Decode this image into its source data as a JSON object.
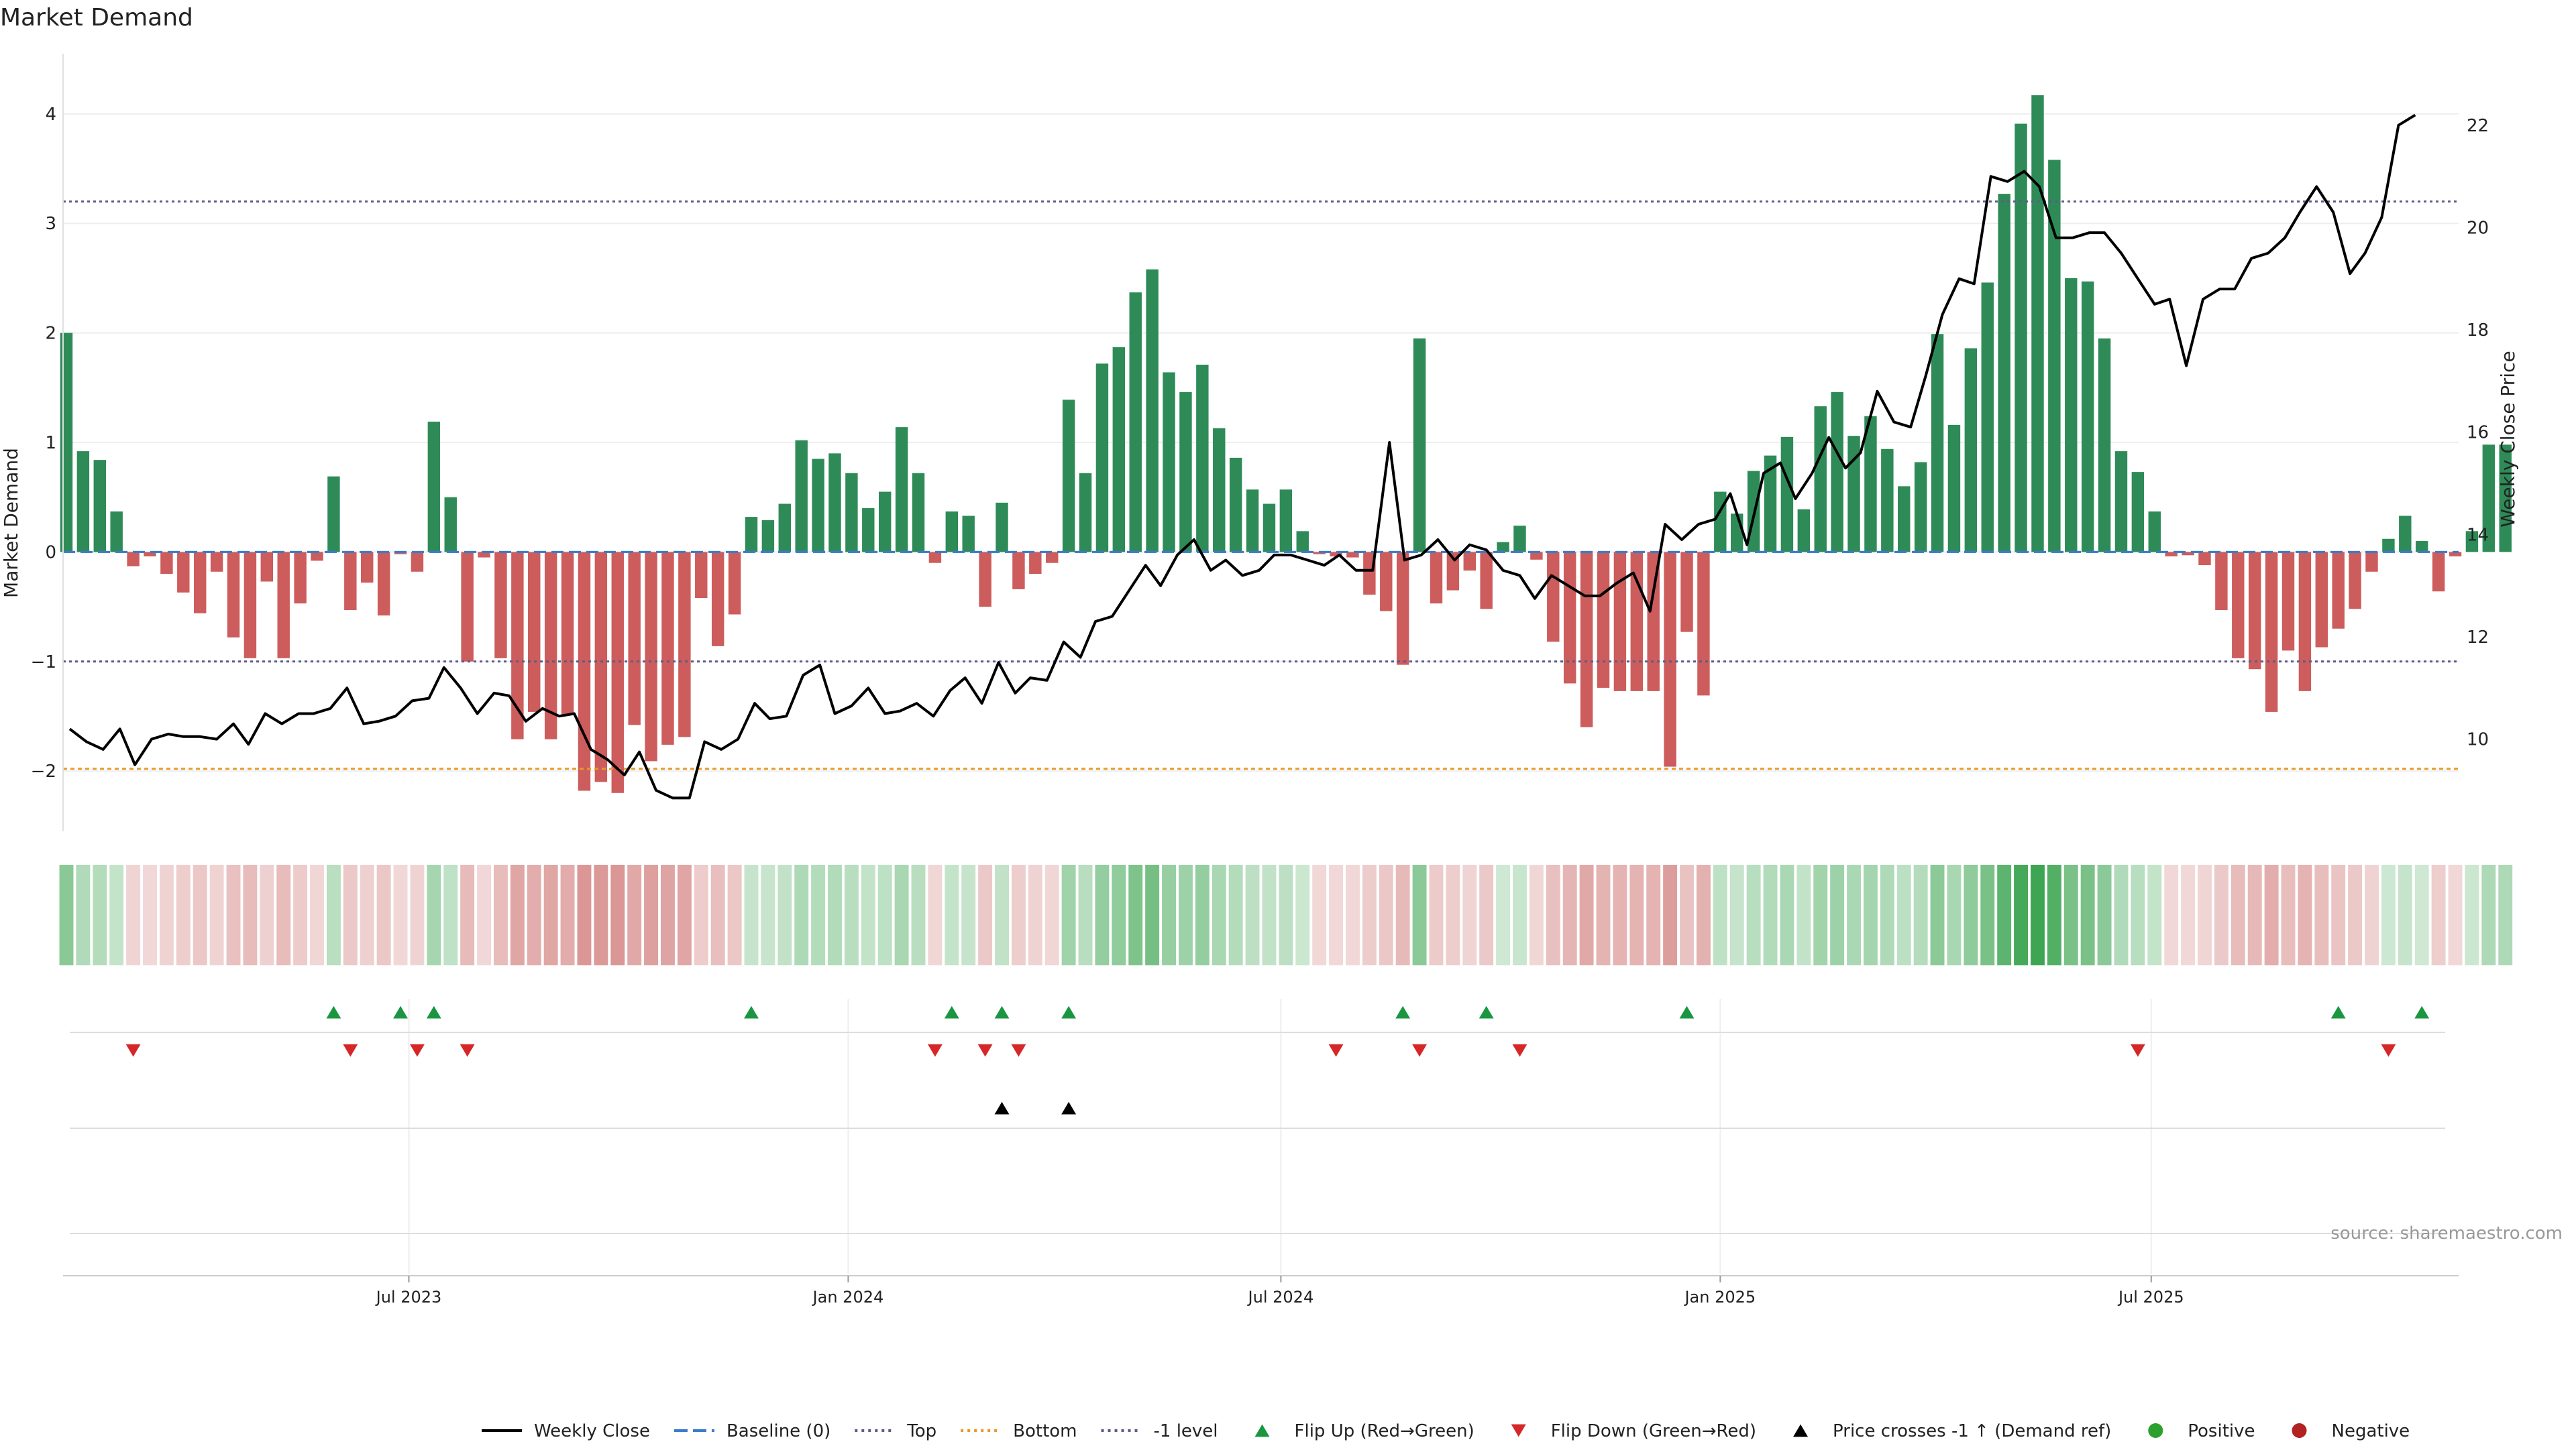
{
  "title": "Market Demand",
  "source_note": "source: sharemaestro.com",
  "colors": {
    "positive": "#2e8b57",
    "negative": "#cd5c5c",
    "price_line": "#000000",
    "top_line": "#5c5c8a",
    "bottom_line": "#e69a28",
    "minus1_line": "#5c5c8a",
    "baseline": "#3a7cc9",
    "flip_up": "#1a9641",
    "flip_down": "#d62728",
    "cross": "#000000",
    "legend_pos": "#2ca02c",
    "legend_neg": "#b22222"
  },
  "legend": [
    {
      "label": "Weekly Close",
      "kind": "solid-line",
      "color": "#000000"
    },
    {
      "label": "Baseline (0)",
      "kind": "dash-line",
      "color": "#3a7cc9"
    },
    {
      "label": "Top",
      "kind": "dot-line",
      "color": "#5c5c8a"
    },
    {
      "label": "Bottom",
      "kind": "dot-line",
      "color": "#e69a28"
    },
    {
      "label": "-1 level",
      "kind": "dot-line",
      "color": "#5c5c8a"
    },
    {
      "label": "Flip Up (Red→Green)",
      "kind": "tri-up",
      "color": "#1a9641"
    },
    {
      "label": "Flip Down (Green→Red)",
      "kind": "tri-down",
      "color": "#d62728"
    },
    {
      "label": "Price crosses -1 ↑ (Demand ref)",
      "kind": "tri-up",
      "color": "#000000"
    },
    {
      "label": "Positive",
      "kind": "dot",
      "color": "#2ca02c"
    },
    {
      "label": "Negative",
      "kind": "dot",
      "color": "#b22222"
    }
  ],
  "chart_data": {
    "type": "bar+line",
    "title": "Market Demand",
    "xlabel": "",
    "ylabel": "Market Demand",
    "y2label": "Weekly Close Price",
    "ylim": [
      -2.55,
      4.55
    ],
    "y2lim": [
      8.2,
      23.4
    ],
    "yticks": [
      -2,
      -1,
      0,
      1,
      2,
      3,
      4
    ],
    "ytick_labels": [
      "−2",
      "−1",
      "0",
      "1",
      "2",
      "3",
      "4"
    ],
    "y2ticks": [
      10,
      12,
      14,
      16,
      18,
      20,
      22
    ],
    "reference_levels": {
      "top": 3.2,
      "bottom": -1.98,
      "minus_one": -1.0,
      "baseline": 0
    },
    "xlim_week": [
      -0.2,
      143.2
    ],
    "xticks": [
      {
        "label": "Jul 2023",
        "week": 20.5
      },
      {
        "label": "Jan 2024",
        "week": 46.8
      },
      {
        "label": "Jul 2024",
        "week": 72.7
      },
      {
        "label": "Jan 2025",
        "week": 99.0
      },
      {
        "label": "Jul 2025",
        "week": 124.8
      }
    ],
    "demand": [
      2.0,
      0.92,
      0.84,
      0.37,
      -0.13,
      -0.04,
      -0.2,
      -0.37,
      -0.56,
      -0.18,
      -0.78,
      -0.97,
      -0.27,
      -0.97,
      -0.47,
      -0.08,
      0.69,
      -0.53,
      -0.28,
      -0.58,
      -0.02,
      -0.18,
      1.19,
      0.5,
      -1.0,
      -0.05,
      -0.97,
      -1.71,
      -1.46,
      -1.71,
      -1.49,
      -2.18,
      -2.1,
      -2.2,
      -1.58,
      -1.91,
      -1.76,
      -1.69,
      -0.42,
      -0.86,
      -0.57,
      0.32,
      0.29,
      0.44,
      1.02,
      0.85,
      0.9,
      0.72,
      0.4,
      0.55,
      1.14,
      0.72,
      -0.1,
      0.37,
      0.33,
      -0.5,
      0.45,
      -0.34,
      -0.2,
      -0.1,
      1.39,
      0.72,
      1.72,
      1.87,
      2.37,
      2.58,
      1.64,
      1.46,
      1.71,
      1.13,
      0.86,
      0.57,
      0.44,
      0.57,
      0.19,
      -0.02,
      -0.04,
      -0.05,
      -0.39,
      -0.54,
      -1.03,
      1.95,
      -0.47,
      -0.35,
      -0.17,
      -0.52,
      0.09,
      0.24,
      -0.07,
      -0.82,
      -1.2,
      -1.6,
      -1.24,
      -1.27,
      -1.27,
      -1.27,
      -1.96,
      -0.73,
      -1.31,
      0.55,
      0.35,
      0.74,
      0.88,
      1.05,
      0.39,
      1.33,
      1.46,
      1.06,
      1.24,
      0.94,
      0.6,
      0.82,
      1.99,
      1.16,
      1.86,
      2.46,
      3.27,
      3.91,
      4.17,
      3.58,
      2.5,
      2.47,
      1.95,
      0.92,
      0.73,
      0.37,
      -0.04,
      -0.03,
      -0.12,
      -0.53,
      -0.97,
      -1.07,
      -1.46,
      -0.9,
      -1.27,
      -0.87,
      -0.7,
      -0.52,
      -0.18,
      0.12,
      0.33,
      0.1,
      -0.36,
      -0.04,
      0.19,
      0.98,
      0.98
    ],
    "flip_up_weeks": [
      16,
      20,
      22,
      41,
      53,
      56,
      60,
      80,
      85,
      97,
      136,
      141
    ],
    "flip_down_weeks": [
      4,
      17,
      21,
      24,
      52,
      55,
      57,
      76,
      81,
      87,
      124,
      139
    ],
    "price_cross_weeks": [
      56,
      60
    ],
    "price": [
      {
        "w": 0.2,
        "v": 10.2
      },
      {
        "w": 1.2,
        "v": 9.95
      },
      {
        "w": 2.2,
        "v": 9.8
      },
      {
        "w": 3.2,
        "v": 10.2
      },
      {
        "w": 4.1,
        "v": 9.5
      },
      {
        "w": 5.1,
        "v": 10.0
      },
      {
        "w": 6.1,
        "v": 10.1
      },
      {
        "w": 7.0,
        "v": 10.05
      },
      {
        "w": 8.0,
        "v": 10.05
      },
      {
        "w": 9.0,
        "v": 10.0
      },
      {
        "w": 10.0,
        "v": 10.3
      },
      {
        "w": 10.9,
        "v": 9.9
      },
      {
        "w": 11.9,
        "v": 10.5
      },
      {
        "w": 12.9,
        "v": 10.3
      },
      {
        "w": 13.9,
        "v": 10.5
      },
      {
        "w": 14.8,
        "v": 10.5
      },
      {
        "w": 15.8,
        "v": 10.6
      },
      {
        "w": 16.8,
        "v": 11.0
      },
      {
        "w": 17.8,
        "v": 10.3
      },
      {
        "w": 18.7,
        "v": 10.35
      },
      {
        "w": 19.7,
        "v": 10.45
      },
      {
        "w": 20.7,
        "v": 10.75
      },
      {
        "w": 21.7,
        "v": 10.8
      },
      {
        "w": 22.6,
        "v": 11.4
      },
      {
        "w": 23.6,
        "v": 11.0
      },
      {
        "w": 24.6,
        "v": 10.5
      },
      {
        "w": 25.6,
        "v": 10.9
      },
      {
        "w": 26.5,
        "v": 10.85
      },
      {
        "w": 27.5,
        "v": 10.35
      },
      {
        "w": 28.5,
        "v": 10.6
      },
      {
        "w": 29.5,
        "v": 10.45
      },
      {
        "w": 30.4,
        "v": 10.5
      },
      {
        "w": 31.4,
        "v": 9.8
      },
      {
        "w": 32.4,
        "v": 9.6
      },
      {
        "w": 33.4,
        "v": 9.3
      },
      {
        "w": 34.3,
        "v": 9.75
      },
      {
        "w": 35.3,
        "v": 9.0
      },
      {
        "w": 36.3,
        "v": 8.85
      },
      {
        "w": 37.3,
        "v": 8.85
      },
      {
        "w": 38.2,
        "v": 9.95
      },
      {
        "w": 39.2,
        "v": 9.8
      },
      {
        "w": 40.2,
        "v": 10.0
      },
      {
        "w": 41.2,
        "v": 10.7
      },
      {
        "w": 42.1,
        "v": 10.4
      },
      {
        "w": 43.1,
        "v": 10.45
      },
      {
        "w": 44.1,
        "v": 11.25
      },
      {
        "w": 45.1,
        "v": 11.45
      },
      {
        "w": 46.0,
        "v": 10.5
      },
      {
        "w": 47.0,
        "v": 10.65
      },
      {
        "w": 48.0,
        "v": 11.0
      },
      {
        "w": 49.0,
        "v": 10.5
      },
      {
        "w": 49.9,
        "v": 10.55
      },
      {
        "w": 50.9,
        "v": 10.7
      },
      {
        "w": 51.9,
        "v": 10.45
      },
      {
        "w": 52.9,
        "v": 10.95
      },
      {
        "w": 53.8,
        "v": 11.2
      },
      {
        "w": 54.8,
        "v": 10.7
      },
      {
        "w": 55.8,
        "v": 11.5
      },
      {
        "w": 56.8,
        "v": 10.9
      },
      {
        "w": 57.7,
        "v": 11.2
      },
      {
        "w": 58.7,
        "v": 11.15
      },
      {
        "w": 59.7,
        "v": 11.9
      },
      {
        "w": 60.7,
        "v": 11.6
      },
      {
        "w": 61.6,
        "v": 12.3
      },
      {
        "w": 62.6,
        "v": 12.4
      },
      {
        "w": 63.6,
        "v": 12.9
      },
      {
        "w": 64.6,
        "v": 13.4
      },
      {
        "w": 65.5,
        "v": 13.0
      },
      {
        "w": 66.5,
        "v": 13.6
      },
      {
        "w": 67.5,
        "v": 13.9
      },
      {
        "w": 68.5,
        "v": 13.3
      },
      {
        "w": 69.4,
        "v": 13.5
      },
      {
        "w": 70.4,
        "v": 13.2
      },
      {
        "w": 71.4,
        "v": 13.3
      },
      {
        "w": 72.3,
        "v": 13.6
      },
      {
        "w": 73.3,
        "v": 13.6
      },
      {
        "w": 74.3,
        "v": 13.5
      },
      {
        "w": 75.3,
        "v": 13.4
      },
      {
        "w": 76.2,
        "v": 13.6
      },
      {
        "w": 77.2,
        "v": 13.3
      },
      {
        "w": 78.2,
        "v": 13.3
      },
      {
        "w": 79.2,
        "v": 15.8
      },
      {
        "w": 80.1,
        "v": 13.5
      },
      {
        "w": 81.1,
        "v": 13.6
      },
      {
        "w": 82.1,
        "v": 13.9
      },
      {
        "w": 83.1,
        "v": 13.5
      },
      {
        "w": 84.0,
        "v": 13.8
      },
      {
        "w": 85.0,
        "v": 13.7
      },
      {
        "w": 86.0,
        "v": 13.3
      },
      {
        "w": 87.0,
        "v": 13.2
      },
      {
        "w": 87.9,
        "v": 12.75
      },
      {
        "w": 88.9,
        "v": 13.2
      },
      {
        "w": 89.9,
        "v": 13.0
      },
      {
        "w": 90.9,
        "v": 12.8
      },
      {
        "w": 91.8,
        "v": 12.8
      },
      {
        "w": 92.8,
        "v": 13.05
      },
      {
        "w": 93.8,
        "v": 13.25
      },
      {
        "w": 94.8,
        "v": 12.5
      },
      {
        "w": 95.7,
        "v": 14.2
      },
      {
        "w": 96.7,
        "v": 13.9
      },
      {
        "w": 97.7,
        "v": 14.2
      },
      {
        "w": 98.7,
        "v": 14.3
      },
      {
        "w": 99.6,
        "v": 14.8
      },
      {
        "w": 100.6,
        "v": 13.8
      },
      {
        "w": 101.6,
        "v": 15.2
      },
      {
        "w": 102.6,
        "v": 15.4
      },
      {
        "w": 103.5,
        "v": 14.7
      },
      {
        "w": 104.5,
        "v": 15.2
      },
      {
        "w": 105.5,
        "v": 15.9
      },
      {
        "w": 106.5,
        "v": 15.3
      },
      {
        "w": 107.4,
        "v": 15.6
      },
      {
        "w": 108.4,
        "v": 16.8
      },
      {
        "w": 109.4,
        "v": 16.2
      },
      {
        "w": 110.4,
        "v": 16.1
      },
      {
        "w": 111.3,
        "v": 17.1
      },
      {
        "w": 112.3,
        "v": 18.3
      },
      {
        "w": 113.3,
        "v": 19.0
      },
      {
        "w": 114.2,
        "v": 18.9
      },
      {
        "w": 115.2,
        "v": 21.0
      },
      {
        "w": 116.2,
        "v": 20.9
      },
      {
        "w": 117.2,
        "v": 21.1
      },
      {
        "w": 118.1,
        "v": 20.8
      },
      {
        "w": 119.1,
        "v": 19.8
      },
      {
        "w": 120.1,
        "v": 19.8
      },
      {
        "w": 121.1,
        "v": 19.9
      },
      {
        "w": 122.0,
        "v": 19.9
      },
      {
        "w": 123.0,
        "v": 19.5
      },
      {
        "w": 124.0,
        "v": 19.0
      },
      {
        "w": 125.0,
        "v": 18.5
      },
      {
        "w": 125.9,
        "v": 18.6
      },
      {
        "w": 126.9,
        "v": 17.3
      },
      {
        "w": 127.9,
        "v": 18.6
      },
      {
        "w": 128.9,
        "v": 18.8
      },
      {
        "w": 129.8,
        "v": 18.8
      },
      {
        "w": 130.8,
        "v": 19.4
      },
      {
        "w": 131.8,
        "v": 19.5
      },
      {
        "w": 132.8,
        "v": 19.8
      },
      {
        "w": 133.7,
        "v": 20.3
      },
      {
        "w": 134.7,
        "v": 20.8
      },
      {
        "w": 135.7,
        "v": 20.3
      },
      {
        "w": 136.7,
        "v": 19.1
      },
      {
        "w": 137.6,
        "v": 19.5
      },
      {
        "w": 138.6,
        "v": 20.2
      },
      {
        "w": 139.6,
        "v": 22.0
      },
      {
        "w": 140.6,
        "v": 22.2
      }
    ]
  }
}
